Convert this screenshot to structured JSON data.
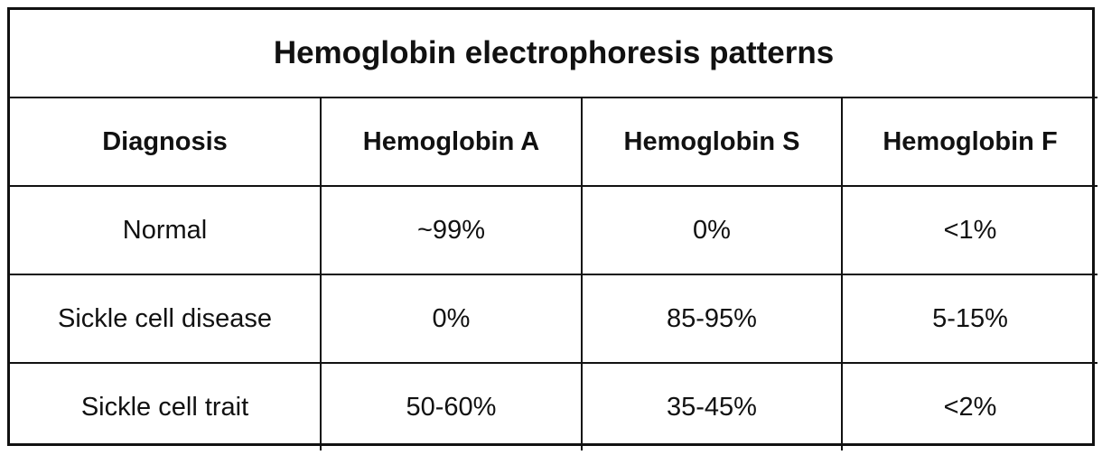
{
  "table": {
    "title": "Hemoglobin electrophoresis patterns",
    "headers": [
      "Diagnosis",
      "Hemoglobin A",
      "Hemoglobin S",
      "Hemoglobin F"
    ],
    "rows": [
      [
        "Normal",
        "~99%",
        "0%",
        "<1%"
      ],
      [
        "Sickle cell disease",
        "0%",
        "85-95%",
        "5-15%"
      ],
      [
        "Sickle cell trait",
        "50-60%",
        "35-45%",
        "<2%"
      ]
    ]
  },
  "colors": {
    "border": "#111111",
    "text": "#111111",
    "background": "#ffffff"
  }
}
